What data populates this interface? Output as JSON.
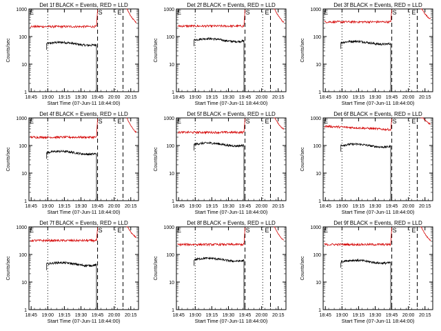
{
  "figure": {
    "xlabel": "Start Time (07-Jun-11 18:44:00)",
    "ylabel": "Counts/sec",
    "series_colors": {
      "events": "#000000",
      "lld": "#d40000"
    },
    "marker_labels": [
      "E",
      "S",
      "E"
    ]
  },
  "chart_data": [
    {
      "type": "line",
      "title": "Det 1f BLACK = Events, RED = LLD",
      "yscale": "log",
      "ylim": [
        1,
        1000
      ],
      "xlim": [
        "18:43",
        "20:22"
      ],
      "x_ticks": [
        "18:45",
        "19:00",
        "19:15",
        "19:30",
        "19:45",
        "20:00",
        "20:15"
      ],
      "y_ticks": [
        "1",
        "10",
        "100",
        "1000"
      ],
      "series": [
        {
          "key": "events",
          "x_range": [
            "18:59",
            "19:44"
          ],
          "level": 55
        },
        {
          "key": "lld",
          "x_range": [
            "18:44",
            "19:44"
          ],
          "level": 230
        }
      ]
    },
    {
      "type": "line",
      "title": "Det 2f BLACK = Events, RED = LLD",
      "yscale": "log",
      "ylim": [
        1,
        1000
      ],
      "xlim": [
        "18:43",
        "20:22"
      ],
      "x_ticks": [
        "18:45",
        "19:00",
        "19:15",
        "19:30",
        "19:45",
        "20:00",
        "20:15"
      ],
      "y_ticks": [
        "1",
        "10",
        "100",
        "1000"
      ],
      "series": [
        {
          "key": "events",
          "x_range": [
            "18:59",
            "19:44"
          ],
          "level": 75
        },
        {
          "key": "lld",
          "x_range": [
            "18:44",
            "19:44"
          ],
          "level": 240
        }
      ]
    },
    {
      "type": "line",
      "title": "Det 3f BLACK = Events, RED = LLD",
      "yscale": "log",
      "ylim": [
        1,
        1000
      ],
      "xlim": [
        "18:43",
        "20:22"
      ],
      "x_ticks": [
        "18:45",
        "19:00",
        "19:15",
        "19:30",
        "19:45",
        "20:00",
        "20:15"
      ],
      "y_ticks": [
        "1",
        "10",
        "100",
        "1000"
      ],
      "series": [
        {
          "key": "events",
          "x_range": [
            "18:59",
            "19:44"
          ],
          "level": 60
        },
        {
          "key": "lld",
          "x_range": [
            "18:44",
            "19:44"
          ],
          "level": 340
        }
      ]
    },
    {
      "type": "line",
      "title": "Det 4f BLACK = Events, RED = LLD",
      "yscale": "log",
      "ylim": [
        1,
        1000
      ],
      "xlim": [
        "18:43",
        "20:22"
      ],
      "x_ticks": [
        "18:45",
        "19:00",
        "19:15",
        "19:30",
        "19:45",
        "20:00",
        "20:15"
      ],
      "y_ticks": [
        "1",
        "10",
        "100",
        "1000"
      ],
      "series": [
        {
          "key": "events",
          "x_range": [
            "18:59",
            "19:44"
          ],
          "level": 55
        },
        {
          "key": "lld",
          "x_range": [
            "18:44",
            "19:44"
          ],
          "level": 200
        }
      ]
    },
    {
      "type": "line",
      "title": "Det 5f BLACK = Events, RED = LLD",
      "yscale": "log",
      "ylim": [
        1,
        1000
      ],
      "xlim": [
        "18:43",
        "20:22"
      ],
      "x_ticks": [
        "18:45",
        "19:00",
        "19:15",
        "19:30",
        "19:45",
        "20:00",
        "20:15"
      ],
      "y_ticks": [
        "1",
        "10",
        "100",
        "1000"
      ],
      "series": [
        {
          "key": "events",
          "x_range": [
            "18:59",
            "19:44"
          ],
          "level": 110
        },
        {
          "key": "lld",
          "x_range": [
            "18:44",
            "19:44"
          ],
          "level": 300
        }
      ]
    },
    {
      "type": "line",
      "title": "Det 6f BLACK = Events, RED = LLD",
      "yscale": "log",
      "ylim": [
        1,
        1000
      ],
      "xlim": [
        "18:43",
        "20:22"
      ],
      "x_ticks": [
        "18:45",
        "19:00",
        "19:15",
        "19:30",
        "19:45",
        "20:00",
        "20:15"
      ],
      "y_ticks": [
        "1",
        "10",
        "100",
        "1000"
      ],
      "series": [
        {
          "key": "events",
          "x_range": [
            "18:59",
            "19:44"
          ],
          "level": 100
        },
        {
          "key": "lld",
          "x_range": [
            "18:44",
            "19:44"
          ],
          "level": 500
        }
      ]
    },
    {
      "type": "line",
      "title": "Det 7f BLACK = Events, RED = LLD",
      "yscale": "log",
      "ylim": [
        1,
        1000
      ],
      "xlim": [
        "18:43",
        "20:22"
      ],
      "x_ticks": [
        "18:45",
        "19:00",
        "19:15",
        "19:30",
        "19:45",
        "20:00",
        "20:15"
      ],
      "y_ticks": [
        "1",
        "10",
        "100",
        "1000"
      ],
      "series": [
        {
          "key": "events",
          "x_range": [
            "18:59",
            "19:44"
          ],
          "level": 45
        },
        {
          "key": "lld",
          "x_range": [
            "18:44",
            "19:44"
          ],
          "level": 320
        }
      ]
    },
    {
      "type": "line",
      "title": "Det 8f BLACK = Events, RED = LLD",
      "yscale": "log",
      "ylim": [
        1,
        1000
      ],
      "xlim": [
        "18:43",
        "20:22"
      ],
      "x_ticks": [
        "18:45",
        "19:00",
        "19:15",
        "19:30",
        "19:45",
        "20:00",
        "20:15"
      ],
      "y_ticks": [
        "1",
        "10",
        "100",
        "1000"
      ],
      "series": [
        {
          "key": "events",
          "x_range": [
            "18:59",
            "19:44"
          ],
          "level": 65
        },
        {
          "key": "lld",
          "x_range": [
            "18:44",
            "19:44"
          ],
          "level": 230
        }
      ]
    },
    {
      "type": "line",
      "title": "Det 9f BLACK = Events, RED = LLD",
      "yscale": "log",
      "ylim": [
        1,
        1000
      ],
      "xlim": [
        "18:43",
        "20:22"
      ],
      "x_ticks": [
        "18:45",
        "19:00",
        "19:15",
        "19:30",
        "19:45",
        "20:00",
        "20:15"
      ],
      "y_ticks": [
        "1",
        "10",
        "100",
        "1000"
      ],
      "series": [
        {
          "key": "events",
          "x_range": [
            "18:59",
            "19:44"
          ],
          "level": 55
        },
        {
          "key": "lld",
          "x_range": [
            "18:44",
            "19:44"
          ],
          "level": 230
        }
      ]
    }
  ]
}
